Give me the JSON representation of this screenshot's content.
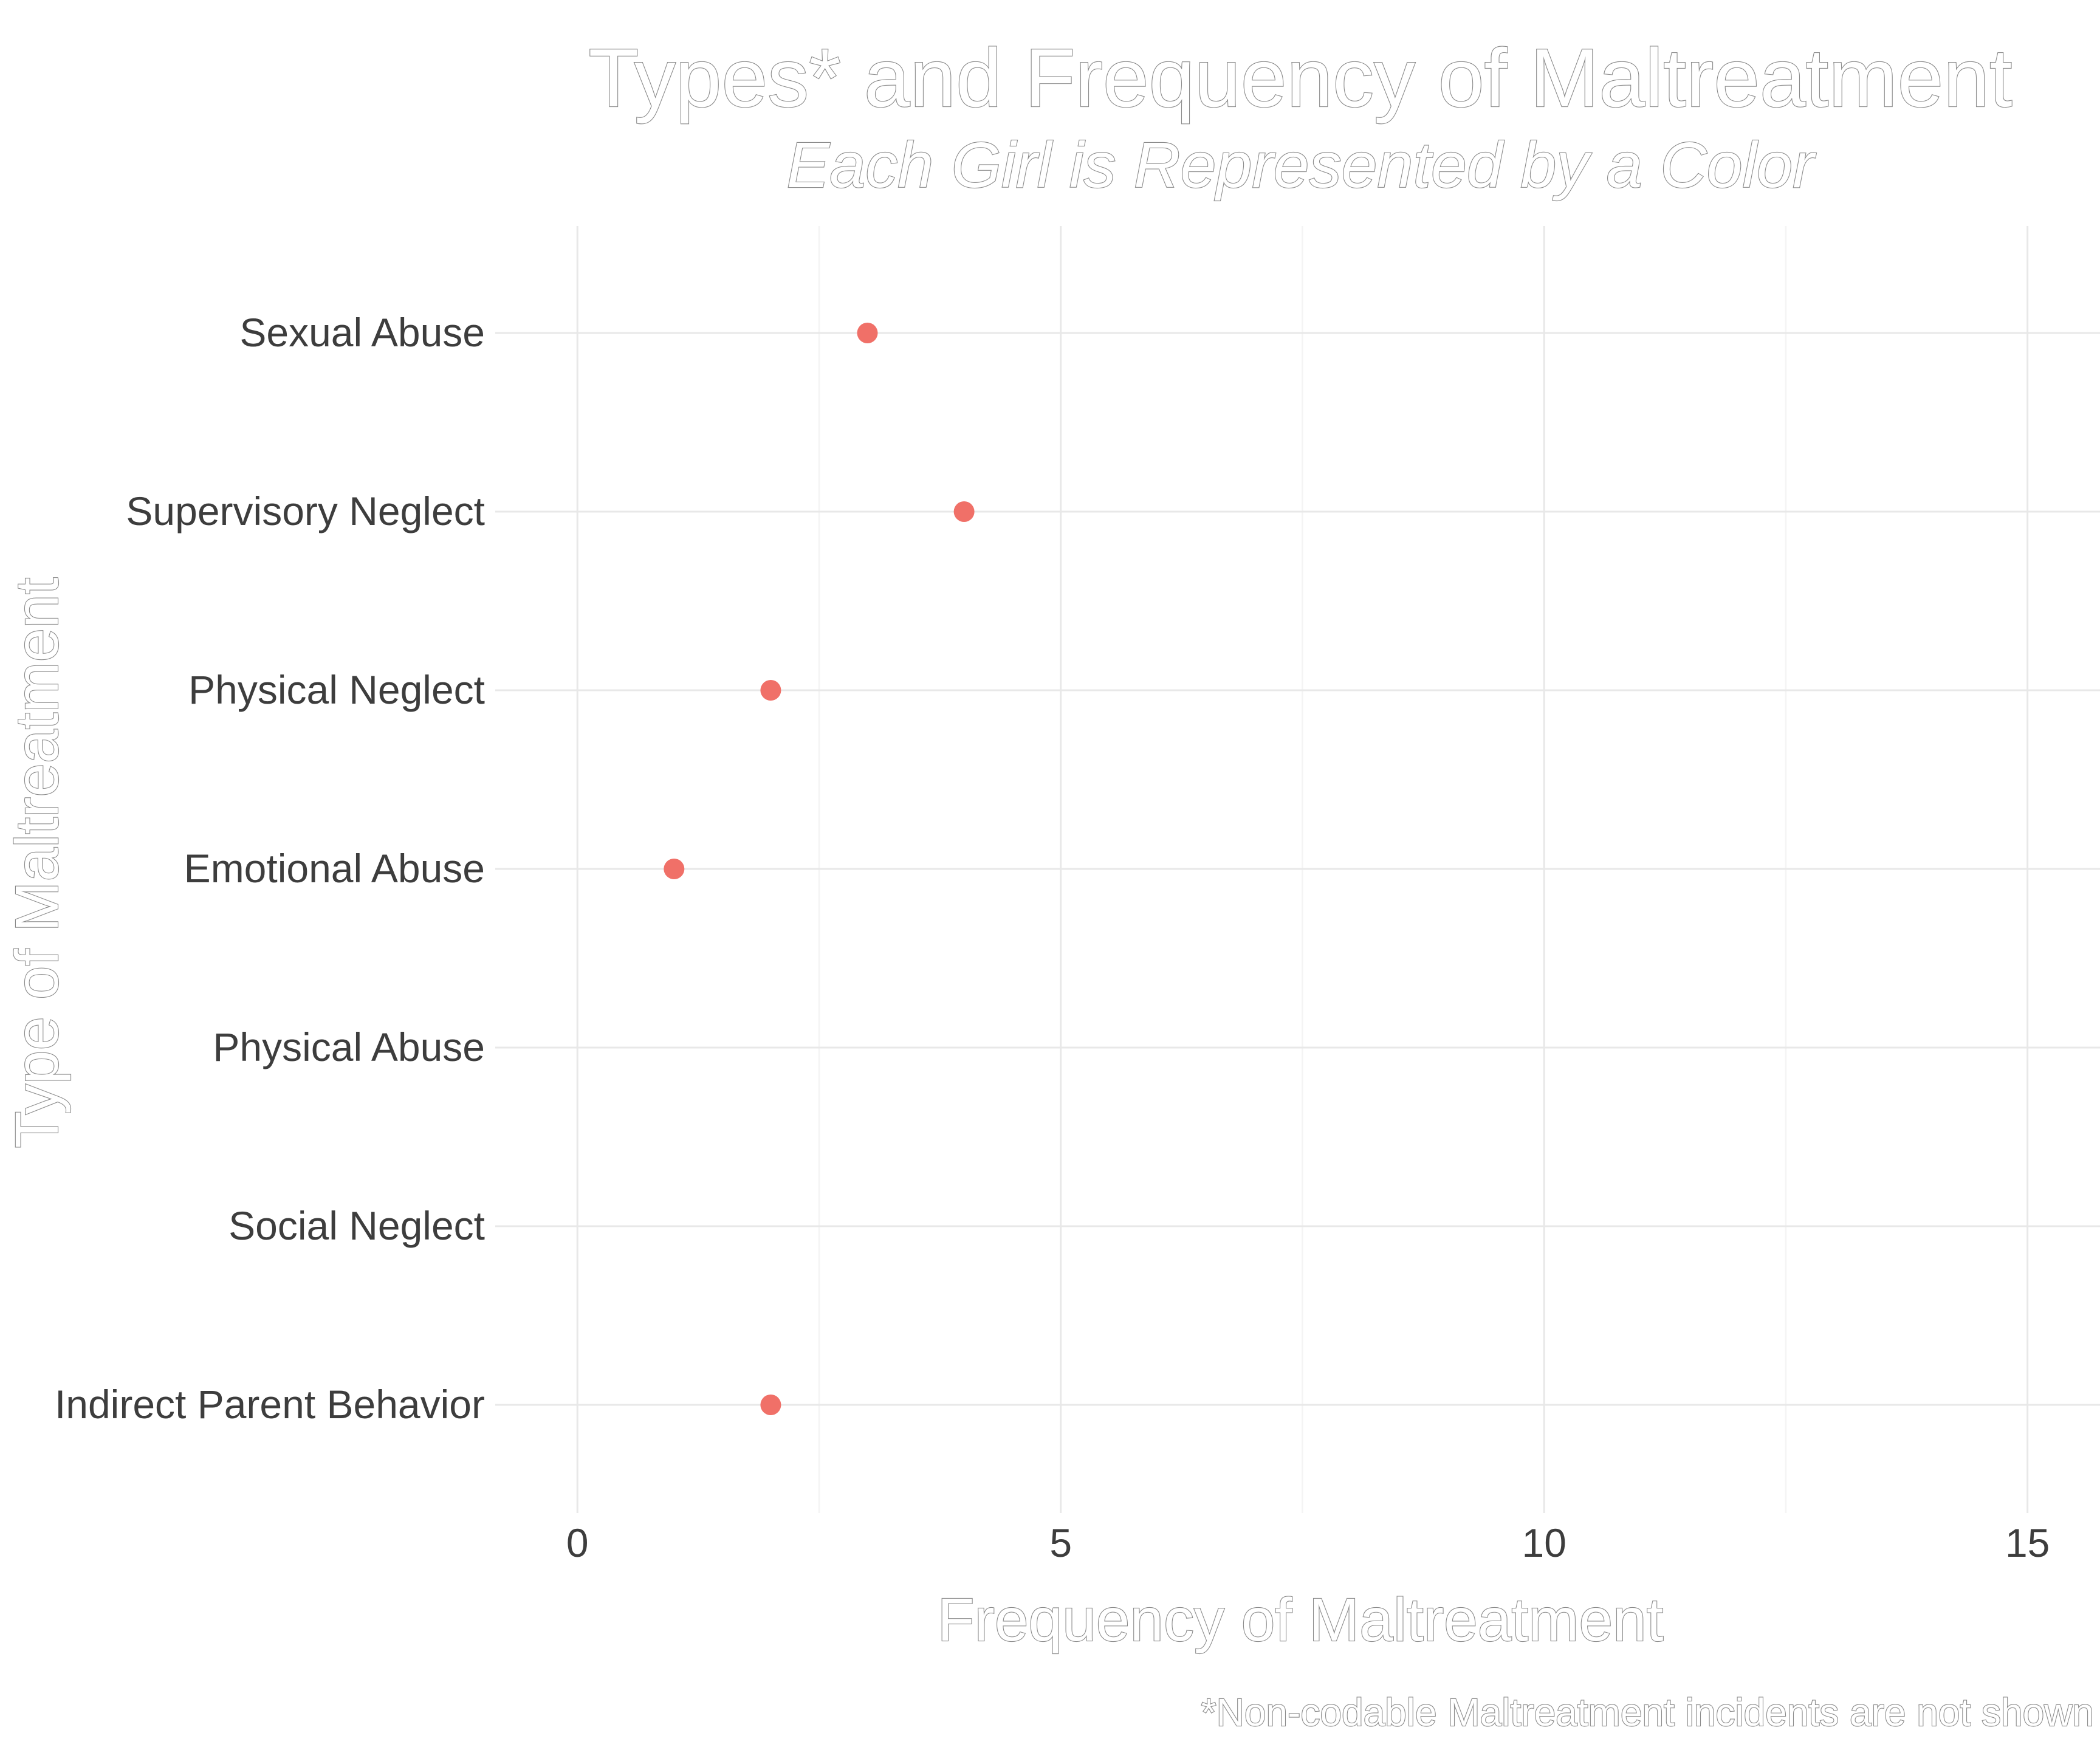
{
  "chart_data": {
    "type": "scatter",
    "title": "Types* and Frequency of Maltreatment",
    "subtitle": "Each Girl is Represented by a Color",
    "xlabel": "Frequency of Maltreatment",
    "ylabel": "Type of Maltreatment",
    "caption": "*Non-codable Maltreatment incidents are not shown",
    "categories": [
      "Sexual Abuse",
      "Supervisory Neglect",
      "Physical Neglect",
      "Emotional Abuse",
      "Physical Abuse",
      "Social Neglect",
      "Indirect Parent Behavior"
    ],
    "x_ticks": [
      "0",
      "5",
      "10",
      "15"
    ],
    "xlim": [
      -0.85,
      15.75
    ],
    "grid": true,
    "legend": "none",
    "point_color": "#f07068",
    "series": [
      {
        "points": [
          {
            "category": "Sexual Abuse",
            "x": 3
          },
          {
            "category": "Supervisory Neglect",
            "x": 4
          },
          {
            "category": "Physical Neglect",
            "x": 2
          },
          {
            "category": "Emotional Abuse",
            "x": 1
          },
          {
            "category": "Indirect Parent Behavior",
            "x": 2
          }
        ]
      }
    ]
  }
}
